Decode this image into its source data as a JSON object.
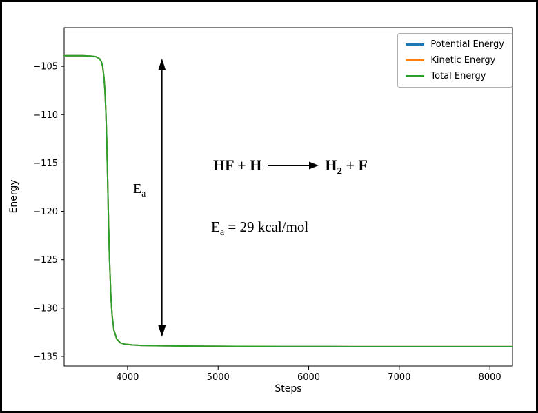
{
  "chart_data": {
    "type": "line",
    "title": "",
    "xlabel": "Steps",
    "ylabel": "Energy",
    "xlim": [
      3300,
      8250
    ],
    "ylim": [
      -136,
      -101
    ],
    "xticks": [
      4000,
      5000,
      6000,
      7000,
      8000
    ],
    "yticks": [
      -105,
      -110,
      -115,
      -120,
      -125,
      -130,
      -135
    ],
    "grid": false,
    "legend_position": "upper right",
    "x": [
      3300,
      3500,
      3600,
      3650,
      3690,
      3710,
      3725,
      3740,
      3750,
      3760,
      3770,
      3780,
      3790,
      3800,
      3815,
      3830,
      3850,
      3880,
      3920,
      3970,
      4050,
      4150,
      4300,
      4500,
      4800,
      5200,
      5700,
      6200,
      6800,
      7400,
      8000,
      8250
    ],
    "series": [
      {
        "name": "Potential Energy",
        "color": "#1f77b4",
        "values": [
          -103.9,
          -103.9,
          -103.95,
          -104.0,
          -104.2,
          -104.5,
          -105.0,
          -106.2,
          -107.5,
          -109.5,
          -112.5,
          -116.5,
          -121.0,
          -124.8,
          -128.5,
          -130.8,
          -132.3,
          -133.2,
          -133.6,
          -133.75,
          -133.82,
          -133.87,
          -133.9,
          -133.92,
          -133.95,
          -133.97,
          -133.98,
          -133.99,
          -134.0,
          -134.0,
          -134.0,
          -134.0
        ]
      },
      {
        "name": "Kinetic Energy",
        "color": "#ff7f0e",
        "values": [
          -103.9,
          -103.9,
          -103.95,
          -104.0,
          -104.2,
          -104.5,
          -105.0,
          -106.2,
          -107.5,
          -109.5,
          -112.5,
          -116.5,
          -121.0,
          -124.8,
          -128.5,
          -130.8,
          -132.3,
          -133.2,
          -133.6,
          -133.75,
          -133.82,
          -133.87,
          -133.9,
          -133.92,
          -133.95,
          -133.97,
          -133.98,
          -133.99,
          -134.0,
          -134.0,
          -134.0,
          -134.0
        ]
      },
      {
        "name": "Total Energy",
        "color": "#2ca02c",
        "values": [
          -103.9,
          -103.9,
          -103.95,
          -104.0,
          -104.2,
          -104.5,
          -105.0,
          -106.2,
          -107.5,
          -109.5,
          -112.5,
          -116.5,
          -121.0,
          -124.8,
          -128.5,
          -130.8,
          -132.3,
          -133.2,
          -133.6,
          -133.75,
          -133.82,
          -133.87,
          -133.9,
          -133.92,
          -133.95,
          -133.97,
          -133.98,
          -133.99,
          -134.0,
          -134.0,
          -134.0,
          -134.0
        ]
      }
    ],
    "annotations": {
      "reaction": {
        "lhs": "HF + H",
        "rhs_formula": "H",
        "rhs_sub": "2",
        "rhs_rest": " + F"
      },
      "ea_value": {
        "main": "E",
        "sub": "a",
        "rest": " = 29 kcal/mol"
      },
      "ea_arrow": {
        "x": 4380,
        "y_top": -104.2,
        "y_bottom": -133.0,
        "label_main": "E",
        "label_sub": "a"
      }
    }
  }
}
